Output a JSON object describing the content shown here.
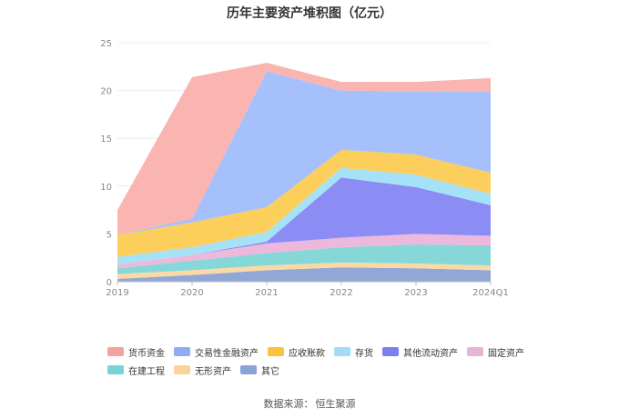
{
  "title": "历年主要资产堆积图（亿元）",
  "source": {
    "label": "数据来源：",
    "name": "恒生聚源"
  },
  "chart_data": {
    "type": "area",
    "stacked": true,
    "x": [
      "2019",
      "2020",
      "2021",
      "2022",
      "2023",
      "2024Q1"
    ],
    "ylim": [
      0,
      25
    ],
    "yticks": [
      0,
      5,
      10,
      15,
      20,
      25
    ],
    "grid": true,
    "legend_position": "bottom",
    "series": [
      {
        "name": "其它",
        "color": "#91a7d6",
        "values": [
          0.3,
          0.7,
          1.2,
          1.5,
          1.4,
          1.2
        ]
      },
      {
        "name": "无形资产",
        "color": "#fcd9a4",
        "values": [
          0.5,
          0.5,
          0.5,
          0.5,
          0.5,
          0.5
        ]
      },
      {
        "name": "在建工程",
        "color": "#86d8d8",
        "values": [
          0.6,
          1.0,
          1.3,
          1.6,
          2.0,
          2.1
        ]
      },
      {
        "name": "固定资产",
        "color": "#ecb8dc",
        "values": [
          0.4,
          0.6,
          1.0,
          1.0,
          1.1,
          1.0
        ]
      },
      {
        "name": "其他流动资产",
        "color": "#8c8cf5",
        "values": [
          0,
          0,
          0.2,
          6.3,
          4.9,
          3.2
        ]
      },
      {
        "name": "存货",
        "color": "#a6e2f7",
        "values": [
          0.8,
          0.8,
          1.0,
          1.0,
          1.3,
          1.2
        ]
      },
      {
        "name": "应收账款",
        "color": "#fcce5c",
        "values": [
          2.3,
          2.6,
          2.6,
          1.9,
          2.1,
          2.2
        ]
      },
      {
        "name": "交易性金融资产",
        "color": "#a6c0fb",
        "values": [
          0,
          0.4,
          14.2,
          6.2,
          6.6,
          8.5
        ]
      },
      {
        "name": "货币资金",
        "color": "#fbb5b0",
        "values": [
          2.6,
          14.8,
          0.9,
          0.9,
          1.0,
          1.4
        ]
      }
    ]
  },
  "legend_rows": [
    [
      {
        "name": "货币资金",
        "color": "#f4a29c"
      },
      {
        "name": "交易性金融资产",
        "color": "#8fadf5"
      },
      {
        "name": "应收账款",
        "color": "#f9c33e"
      },
      {
        "name": "存货",
        "color": "#a3dcf5"
      },
      {
        "name": "其他流动资产",
        "color": "#7b7ff0"
      },
      {
        "name": "固定资产",
        "color": "#e6b3d9"
      }
    ],
    [
      {
        "name": "在建工程",
        "color": "#7ad3d3"
      },
      {
        "name": "无形资产",
        "color": "#fad59b"
      },
      {
        "name": "其它",
        "color": "#8aa3d6"
      }
    ]
  ]
}
